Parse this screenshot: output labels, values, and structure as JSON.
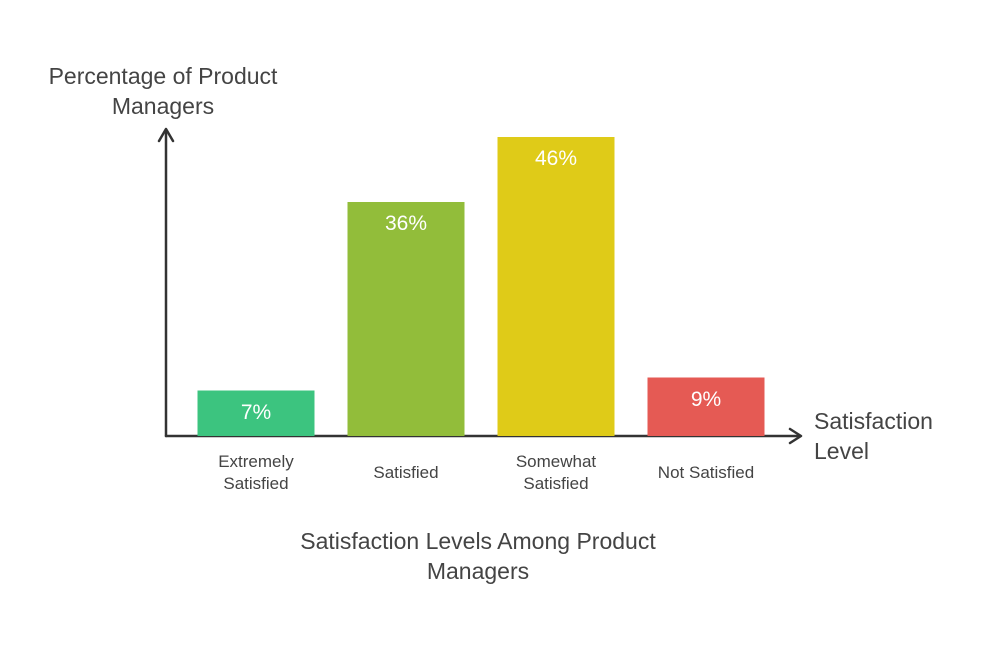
{
  "chart_data": {
    "type": "bar",
    "title": "Satisfaction Levels Among Product Managers",
    "x_label": "Satisfaction Level",
    "y_label": "Percentage of Product Managers",
    "categories": [
      "Extremely Satisfied",
      "Satisfied",
      "Somewhat Satisfied",
      "Not Satisfied"
    ],
    "values": [
      7,
      36,
      46,
      9
    ],
    "value_labels": [
      "7%",
      "36%",
      "46%",
      "9%"
    ],
    "colors": [
      "#3cc47f",
      "#92bd3a",
      "#dfcb18",
      "#e55a54"
    ]
  }
}
